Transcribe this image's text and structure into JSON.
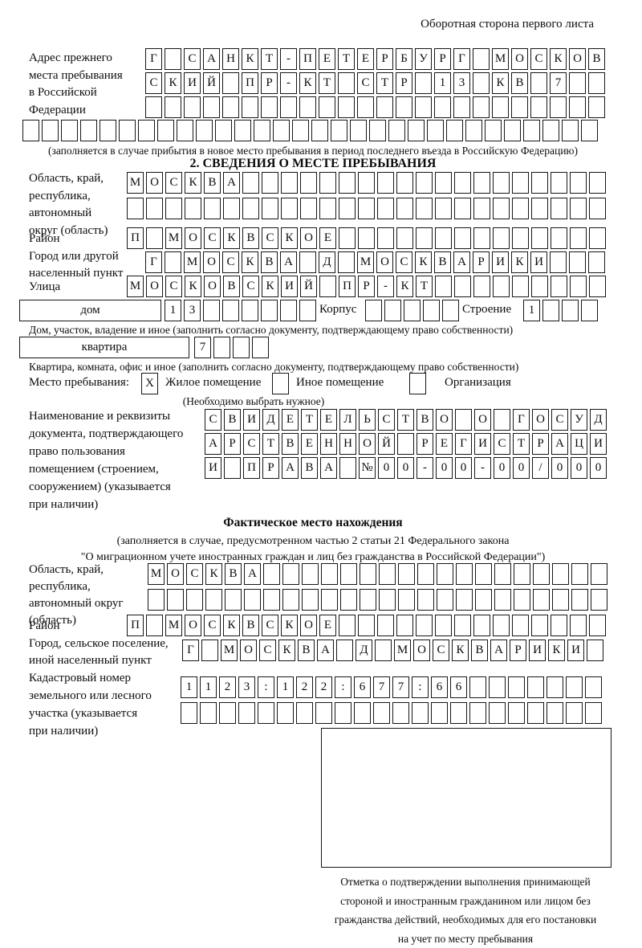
{
  "page": {
    "back_note": "Оборотная сторона первого листа"
  },
  "section1": {
    "label_lines": [
      "Адрес прежнего",
      "места пребывания",
      "в Российской",
      "Федерации"
    ],
    "rows": [
      {
        "text": "Г САНКТ-ПЕТЕРБУРГ МОСКОВ",
        "len": 24
      },
      {
        "text": "СКИЙ ПР-КТ СТР 13 КВ 7",
        "len": 24
      },
      {
        "text": "",
        "len": 24
      },
      {
        "text": "",
        "len": 30
      }
    ],
    "caption": "(заполняется в случае прибытия в новое место пребывания в период последнего въезда в Российскую Федерацию)"
  },
  "section2": {
    "title": "2. СВЕДЕНИЯ О МЕСТЕ ПРЕБЫВАНИЯ",
    "oblast_label": [
      "Область, край,",
      "республика,",
      "автономный",
      "округ (область)"
    ],
    "oblast_row1": {
      "text": "МОСКВА",
      "len": 25
    },
    "oblast_row2": {
      "text": "",
      "len": 25
    },
    "raion_label": "Район",
    "raion_row": {
      "text": "П МОСКВСКОЕ",
      "len": 25
    },
    "gorod_label": [
      "Город или другой",
      "населенный пункт"
    ],
    "gorod_row": {
      "text": "Г МОСКВА Д МОСКВАРИКИ",
      "len": 24
    },
    "ulitsa_label": "Улица",
    "ulitsa_row": {
      "text": "МОСКОВСКИЙ ПР-КТ",
      "len": 25
    },
    "dom": {
      "box_label": "дом",
      "cells": {
        "text": "13",
        "len": 8
      },
      "korpus_label": "Корпус",
      "korpus_cells": {
        "text": "",
        "len": 5
      },
      "stroenie_label": "Строение",
      "stroenie_cells": {
        "text": "1",
        "len": 4
      }
    },
    "dom_caption": "Дом, участок, владение и иное (заполнить согласно документу, подтверждающему право собственности)",
    "kvartira": {
      "box_label": "квартира",
      "cells": {
        "text": "7",
        "len": 4
      }
    },
    "kvartira_caption": "Квартира, комната, офис и иное (заполнить согласно документу, подтверждающему право собственности)",
    "mesto": {
      "label": "Место пребывания:",
      "opt1_mark": {
        "text": "X",
        "len": 1
      },
      "opt1": "Жилое помещение",
      "opt2_mark": {
        "text": "",
        "len": 1
      },
      "opt2": "Иное помещение",
      "opt3_mark": {
        "text": "",
        "len": 1
      },
      "opt3": "Организация",
      "note": "(Необходимо выбрать нужное)"
    },
    "doc_label": [
      "Наименование и реквизиты",
      "документа, подтверждающего",
      "право пользования",
      "помещением (строением,",
      "сооружением) (указывается",
      "при наличии)"
    ],
    "doc_rows": [
      {
        "text": "СВИДЕТЕЛЬСТВО О ГОСУД",
        "len": 21
      },
      {
        "text": "АРСТВЕННОЙ РЕГИСТРАЦИ",
        "len": 21
      },
      {
        "text": "И ПРАВА №00-00-00/000",
        "len": 21
      }
    ]
  },
  "section3": {
    "title": "Фактическое место нахождения",
    "caption_lines": [
      "(заполняется в случае, предусмотренном частью 2 статьи 21 Федерального закона",
      "\"О миграционном учете иностранных граждан и лиц без гражданства в Российской Федерации\")"
    ],
    "oblast_label": [
      "Область, край,",
      "республика,",
      "автономный округ",
      "(область)"
    ],
    "oblast_row1": {
      "text": "МОСКВА",
      "len": 24
    },
    "oblast_row2": {
      "text": "",
      "len": 24
    },
    "raion_label": "Район",
    "raion_row": {
      "text": "П МОСКВСКОЕ",
      "len": 25
    },
    "gorod_label": [
      "Город, сельское поселение,",
      "иной населенный пункт"
    ],
    "gorod_row": {
      "text": "Г МОСКВА Д МОСКВАРИКИ",
      "len": 22
    },
    "kadastr_label": [
      "Кадастровый номер",
      "земельного или лесного",
      "участка (указывается",
      "при наличии)"
    ],
    "kadastr_row1": {
      "text": "1123:122:677:66",
      "len": 22
    },
    "kadastr_row2": {
      "text": "",
      "len": 22
    }
  },
  "stamp": {
    "caption_lines": [
      "Отметка о подтверждении выполнения принимающей",
      "стороной и иностранным гражданином или лицом без",
      "гражданства действий, необходимых для его постановки",
      "на учет по месту пребывания"
    ]
  }
}
